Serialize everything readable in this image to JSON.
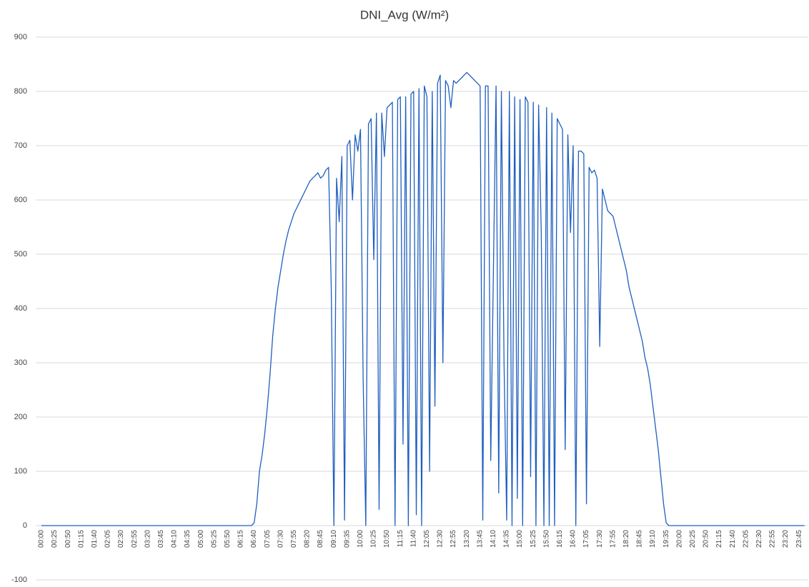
{
  "chart_data": {
    "type": "line",
    "title": "DNI_Avg (W/m²)",
    "categories": [
      "00:00",
      null,
      null,
      null,
      null,
      "00:25",
      null,
      null,
      null,
      null,
      "00:50",
      null,
      null,
      null,
      null,
      "01:15",
      null,
      null,
      null,
      null,
      "01:40",
      null,
      null,
      null,
      null,
      "02:05",
      null,
      null,
      null,
      null,
      "02:30",
      null,
      null,
      null,
      null,
      "02:55",
      null,
      null,
      null,
      null,
      "03:20",
      null,
      null,
      null,
      null,
      "03:45",
      null,
      null,
      null,
      null,
      "04:10",
      null,
      null,
      null,
      null,
      "04:35",
      null,
      null,
      null,
      null,
      "05:00",
      null,
      null,
      null,
      null,
      "05:25",
      null,
      null,
      null,
      null,
      "05:50",
      null,
      null,
      null,
      null,
      "06:15",
      null,
      null,
      null,
      null,
      "06:40",
      null,
      null,
      null,
      null,
      "07:05",
      null,
      null,
      null,
      null,
      "07:30",
      null,
      null,
      null,
      null,
      "07:55",
      null,
      null,
      null,
      null,
      "08:20",
      null,
      null,
      null,
      null,
      "08:45",
      null,
      null,
      null,
      null,
      "09:10",
      null,
      null,
      null,
      null,
      "09:35",
      null,
      null,
      null,
      null,
      "10:00",
      null,
      null,
      null,
      null,
      "10:25",
      null,
      null,
      null,
      null,
      "10:50",
      null,
      null,
      null,
      null,
      "11:15",
      null,
      null,
      null,
      null,
      "11:40",
      null,
      null,
      null,
      null,
      "12:05",
      null,
      null,
      null,
      null,
      "12:30",
      null,
      null,
      null,
      null,
      "12:55",
      null,
      null,
      null,
      null,
      "13:20",
      null,
      null,
      null,
      null,
      "13:45",
      null,
      null,
      null,
      null,
      "14:10",
      null,
      null,
      null,
      null,
      "14:35",
      null,
      null,
      null,
      null,
      "15:00",
      null,
      null,
      null,
      null,
      "15:25",
      null,
      null,
      null,
      null,
      "15:50",
      null,
      null,
      null,
      null,
      "16:15",
      null,
      null,
      null,
      null,
      "16:40",
      null,
      null,
      null,
      null,
      "17:05",
      null,
      null,
      null,
      null,
      "17:30",
      null,
      null,
      null,
      null,
      "17:55",
      null,
      null,
      null,
      null,
      "18:20",
      null,
      null,
      null,
      null,
      "18:45",
      null,
      null,
      null,
      null,
      "19:10",
      null,
      null,
      null,
      null,
      "19:35",
      null,
      null,
      null,
      null,
      "20:00",
      null,
      null,
      null,
      null,
      "20:25",
      null,
      null,
      null,
      null,
      "20:50",
      null,
      null,
      null,
      null,
      "21:15",
      null,
      null,
      null,
      null,
      "21:40",
      null,
      null,
      null,
      null,
      "22:05",
      null,
      null,
      null,
      null,
      "22:30",
      null,
      null,
      null,
      null,
      "22:55",
      null,
      null,
      null,
      null,
      "23:20",
      null,
      null,
      null,
      null,
      "23:45",
      null,
      null
    ],
    "values": [
      0,
      0,
      0,
      0,
      0,
      0,
      0,
      0,
      0,
      0,
      0,
      0,
      0,
      0,
      0,
      0,
      0,
      0,
      0,
      0,
      0,
      0,
      0,
      0,
      0,
      0,
      0,
      0,
      0,
      0,
      0,
      0,
      0,
      0,
      0,
      0,
      0,
      0,
      0,
      0,
      0,
      0,
      0,
      0,
      0,
      0,
      0,
      0,
      0,
      0,
      0,
      0,
      0,
      0,
      0,
      0,
      0,
      0,
      0,
      0,
      0,
      0,
      0,
      0,
      0,
      0,
      0,
      0,
      0,
      0,
      0,
      0,
      0,
      0,
      0,
      0,
      0,
      0,
      0,
      0,
      5,
      40,
      100,
      130,
      170,
      220,
      280,
      350,
      400,
      440,
      470,
      500,
      525,
      545,
      560,
      575,
      585,
      595,
      605,
      615,
      625,
      635,
      640,
      645,
      650,
      640,
      645,
      655,
      660,
      440,
      0,
      640,
      560,
      680,
      10,
      700,
      710,
      600,
      720,
      690,
      730,
      270,
      0,
      740,
      750,
      490,
      760,
      30,
      760,
      680,
      770,
      775,
      780,
      0,
      785,
      790,
      150,
      790,
      0,
      795,
      800,
      20,
      805,
      0,
      810,
      790,
      100,
      800,
      220,
      815,
      830,
      300,
      820,
      810,
      770,
      820,
      815,
      820,
      825,
      830,
      835,
      830,
      825,
      820,
      815,
      810,
      10,
      810,
      810,
      120,
      470,
      810,
      60,
      800,
      300,
      10,
      800,
      0,
      790,
      50,
      785,
      0,
      790,
      780,
      90,
      780,
      0,
      775,
      540,
      0,
      770,
      0,
      760,
      0,
      750,
      740,
      730,
      140,
      720,
      540,
      700,
      0,
      690,
      690,
      685,
      40,
      660,
      650,
      655,
      640,
      330,
      620,
      600,
      580,
      575,
      570,
      550,
      530,
      510,
      490,
      470,
      440,
      420,
      400,
      380,
      360,
      340,
      310,
      290,
      260,
      220,
      180,
      140,
      90,
      40,
      5,
      0,
      0,
      0,
      0,
      0,
      0,
      0,
      0,
      0,
      0,
      0,
      0,
      0,
      0,
      0,
      0,
      0,
      0,
      0,
      0,
      0,
      0,
      0,
      0,
      0,
      0,
      0,
      0,
      0,
      0,
      0,
      0,
      0,
      0,
      0,
      0,
      0,
      0,
      0,
      0,
      0,
      0,
      0,
      0,
      0,
      0,
      0,
      0,
      0,
      0,
      0,
      0
    ],
    "color": "#1f5fbf",
    "ylim": [
      -100,
      900
    ],
    "yticks": [
      -100,
      0,
      100,
      200,
      300,
      400,
      500,
      600,
      700,
      800,
      900
    ],
    "grid": true
  }
}
